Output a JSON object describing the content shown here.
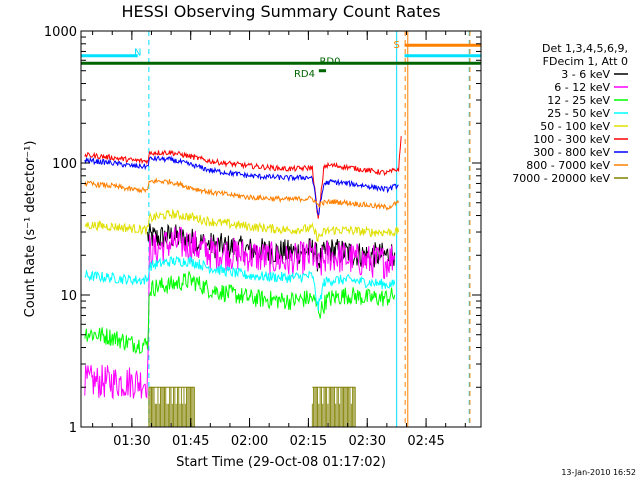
{
  "chart_data": {
    "type": "line",
    "title": "HESSI Observing Summary Count Rates",
    "xlabel": "Start Time (29-Oct-08 01:17:02)",
    "ylabel": "Count Rate (s⁻¹ detector⁻¹)",
    "y_scale": "log",
    "ylim": [
      1,
      1000
    ],
    "xlim": [
      "01:17:02",
      "02:59:00"
    ],
    "x_ticks": [
      "01:30",
      "01:45",
      "02:00",
      "02:15",
      "02:30",
      "02:45"
    ],
    "y_ticks": [
      "1",
      "10",
      "100",
      "1000"
    ],
    "footer_date": "13-Jan-2010 16:52",
    "legend": {
      "header": [
        "Det 1,3,4,5,6,9,",
        "FDecim 1, Att 0"
      ],
      "placement": "right"
    },
    "annotations": [
      {
        "text": "N",
        "time": "01:31:30",
        "value": 700,
        "color": "#00e0ff"
      },
      {
        "text": "S",
        "time": "02:37:30",
        "value": 800,
        "color": "#ff8000"
      },
      {
        "text": "RD0",
        "time": "02:20:30",
        "value": 600,
        "color": "#006400"
      },
      {
        "text": "RD4",
        "time": "02:14:00",
        "value": 480,
        "color": "#006400"
      }
    ],
    "flag_bars": [
      {
        "name": "N",
        "color": "#00e0ff",
        "value": 650,
        "segments": [
          [
            "01:17:02",
            "01:31:30"
          ]
        ]
      },
      {
        "name": "S",
        "color": "#ff8000",
        "value": 780,
        "segments": [
          [
            "02:39:30",
            "02:59:00"
          ]
        ]
      },
      {
        "name": "S2",
        "color": "#00e0ff",
        "value": 650,
        "segments": [
          [
            "02:39:30",
            "02:59:00"
          ]
        ]
      },
      {
        "name": "RD0",
        "color": "#006400",
        "value": 570,
        "segments": [
          [
            "01:17:02",
            "02:59:00"
          ]
        ]
      },
      {
        "name": "RD4",
        "color": "#006400",
        "value": 500,
        "segments": [
          [
            "02:17:40",
            "02:19:30"
          ]
        ]
      }
    ],
    "vlines": [
      {
        "time": "01:17:02",
        "color": "#00e0ff",
        "dash": false
      },
      {
        "time": "01:34:20",
        "color": "#00e0ff",
        "dash": true
      },
      {
        "time": "02:37:30",
        "color": "#00e0ff",
        "dash": false
      },
      {
        "time": "02:39:40",
        "color": "#ff8000",
        "dash": true
      },
      {
        "time": "02:40:20",
        "color": "#ff8000",
        "dash": false
      },
      {
        "time": "02:56:00",
        "color": "#00e0ff",
        "dash": true
      },
      {
        "time": "02:56:10",
        "color": "#ff8000",
        "dash": true
      }
    ],
    "series": [
      {
        "name": "3 - 6 keV",
        "color": "#000000",
        "noise": 0.1,
        "x": [
          "01:34:00",
          "01:36:00",
          "01:40:00",
          "01:45:00",
          "01:50:00",
          "02:00:00",
          "02:10:00",
          "02:16:30",
          "02:17:30",
          "02:20:00",
          "02:25:00",
          "02:30:00",
          "02:35:00",
          "02:37:00"
        ],
        "y": [
          28,
          27,
          28,
          26,
          24,
          22,
          21,
          22,
          18,
          22,
          21,
          20,
          20,
          21
        ]
      },
      {
        "name": "6 - 12 keV",
        "color": "#ff00ff",
        "noise": 0.13,
        "x": [
          "01:18:00",
          "01:25:00",
          "01:30:00",
          "01:34:00",
          "01:34:30",
          "01:36:00",
          "01:40:00",
          "01:45:00",
          "01:50:00",
          "02:00:00",
          "02:10:00",
          "02:16:30",
          "02:17:30",
          "02:20:00",
          "02:25:00",
          "02:30:00",
          "02:35:00",
          "02:37:00"
        ],
        "y": [
          2.2,
          2.2,
          2.2,
          2.2,
          22,
          22,
          25,
          24,
          21,
          20,
          18,
          20,
          16,
          20,
          19,
          18,
          18,
          20
        ]
      },
      {
        "name": "12 - 25 keV",
        "color": "#00ff00",
        "noise": 0.07,
        "x": [
          "01:18:00",
          "01:25:00",
          "01:30:00",
          "01:34:00",
          "01:34:30",
          "01:36:00",
          "01:40:00",
          "01:45:00",
          "01:50:00",
          "02:00:00",
          "02:10:00",
          "02:16:00",
          "02:18:00",
          "02:19:30",
          "02:21:00",
          "02:25:00",
          "02:30:00",
          "02:35:00",
          "02:37:00"
        ],
        "y": [
          5.2,
          4.8,
          4.3,
          4.2,
          11,
          11.5,
          12,
          13,
          11,
          9.5,
          9,
          9.5,
          7.5,
          9,
          9.5,
          10,
          9.5,
          9.5,
          10
        ]
      },
      {
        "name": "25 - 50 keV",
        "color": "#00ffff",
        "noise": 0.04,
        "x": [
          "01:18:00",
          "01:25:00",
          "01:30:00",
          "01:34:00",
          "01:34:30",
          "01:36:00",
          "01:40:00",
          "01:45:00",
          "01:50:00",
          "02:00:00",
          "02:10:00",
          "02:16:00",
          "02:17:30",
          "02:19:00",
          "02:21:00",
          "02:25:00",
          "02:30:00",
          "02:35:00",
          "02:37:00"
        ],
        "y": [
          14,
          13.5,
          13,
          13,
          16.5,
          17,
          18,
          18,
          16,
          14,
          13.5,
          14,
          8,
          12.5,
          13,
          13,
          12.5,
          12,
          12
        ]
      },
      {
        "name": "50 - 100 keV",
        "color": "#e0e000",
        "noise": 0.035,
        "x": [
          "01:18:00",
          "01:25:00",
          "01:30:00",
          "01:34:00",
          "01:34:30",
          "01:36:00",
          "01:40:00",
          "01:45:00",
          "01:50:00",
          "02:00:00",
          "02:10:00",
          "02:16:00",
          "02:17:30",
          "02:19:00",
          "02:21:00",
          "02:25:00",
          "02:30:00",
          "02:35:00",
          "02:38:00"
        ],
        "y": [
          34,
          33,
          32,
          31,
          38,
          39,
          41,
          39,
          36,
          33,
          31,
          32,
          27,
          30,
          31,
          31,
          30,
          30,
          30
        ]
      },
      {
        "name": "100 - 300 keV",
        "color": "#ff0000",
        "noise": 0.02,
        "x": [
          "01:18:00",
          "01:25:00",
          "01:30:00",
          "01:34:00",
          "01:34:30",
          "01:36:00",
          "01:40:00",
          "01:45:00",
          "01:50:00",
          "02:00:00",
          "02:10:00",
          "02:16:00",
          "02:17:30",
          "02:19:00",
          "02:21:00",
          "02:25:00",
          "02:30:00",
          "02:35:00",
          "02:38:00",
          "02:38:40"
        ],
        "y": [
          115,
          110,
          105,
          103,
          118,
          120,
          120,
          112,
          103,
          95,
          90,
          92,
          37,
          95,
          96,
          93,
          88,
          84,
          90,
          160
        ]
      },
      {
        "name": "300 - 800 keV",
        "color": "#0000ff",
        "noise": 0.02,
        "x": [
          "01:18:00",
          "01:25:00",
          "01:30:00",
          "01:34:00",
          "01:34:30",
          "01:36:00",
          "01:40:00",
          "01:45:00",
          "01:50:00",
          "02:00:00",
          "02:10:00",
          "02:16:00",
          "02:17:30",
          "02:19:00",
          "02:21:00",
          "02:25:00",
          "02:30:00",
          "02:35:00",
          "02:38:00"
        ],
        "y": [
          105,
          100,
          95,
          94,
          107,
          108,
          106,
          97,
          88,
          80,
          77,
          78,
          40,
          70,
          72,
          70,
          67,
          63,
          68
        ]
      },
      {
        "name": "800 - 7000 keV",
        "color": "#ff8000",
        "noise": 0.02,
        "x": [
          "01:18:00",
          "01:25:00",
          "01:30:00",
          "01:34:00",
          "01:34:30",
          "01:36:00",
          "01:40:00",
          "01:45:00",
          "01:50:00",
          "02:00:00",
          "02:10:00",
          "02:16:00",
          "02:17:30",
          "02:19:00",
          "02:21:00",
          "02:25:00",
          "02:30:00",
          "02:35:00",
          "02:38:00"
        ],
        "y": [
          70,
          67,
          63,
          62,
          72,
          73,
          72,
          65,
          60,
          55,
          53,
          54,
          48,
          50,
          51,
          50,
          48,
          46,
          50
        ]
      },
      {
        "name": "7000 - 20000 keV",
        "color": "#808000",
        "noise": 0,
        "x": [
          "01:34:20",
          "01:46:00",
          "02:16:00",
          "02:27:00"
        ],
        "y": [
          1.5,
          1.5,
          1.5,
          1.5
        ]
      }
    ]
  }
}
